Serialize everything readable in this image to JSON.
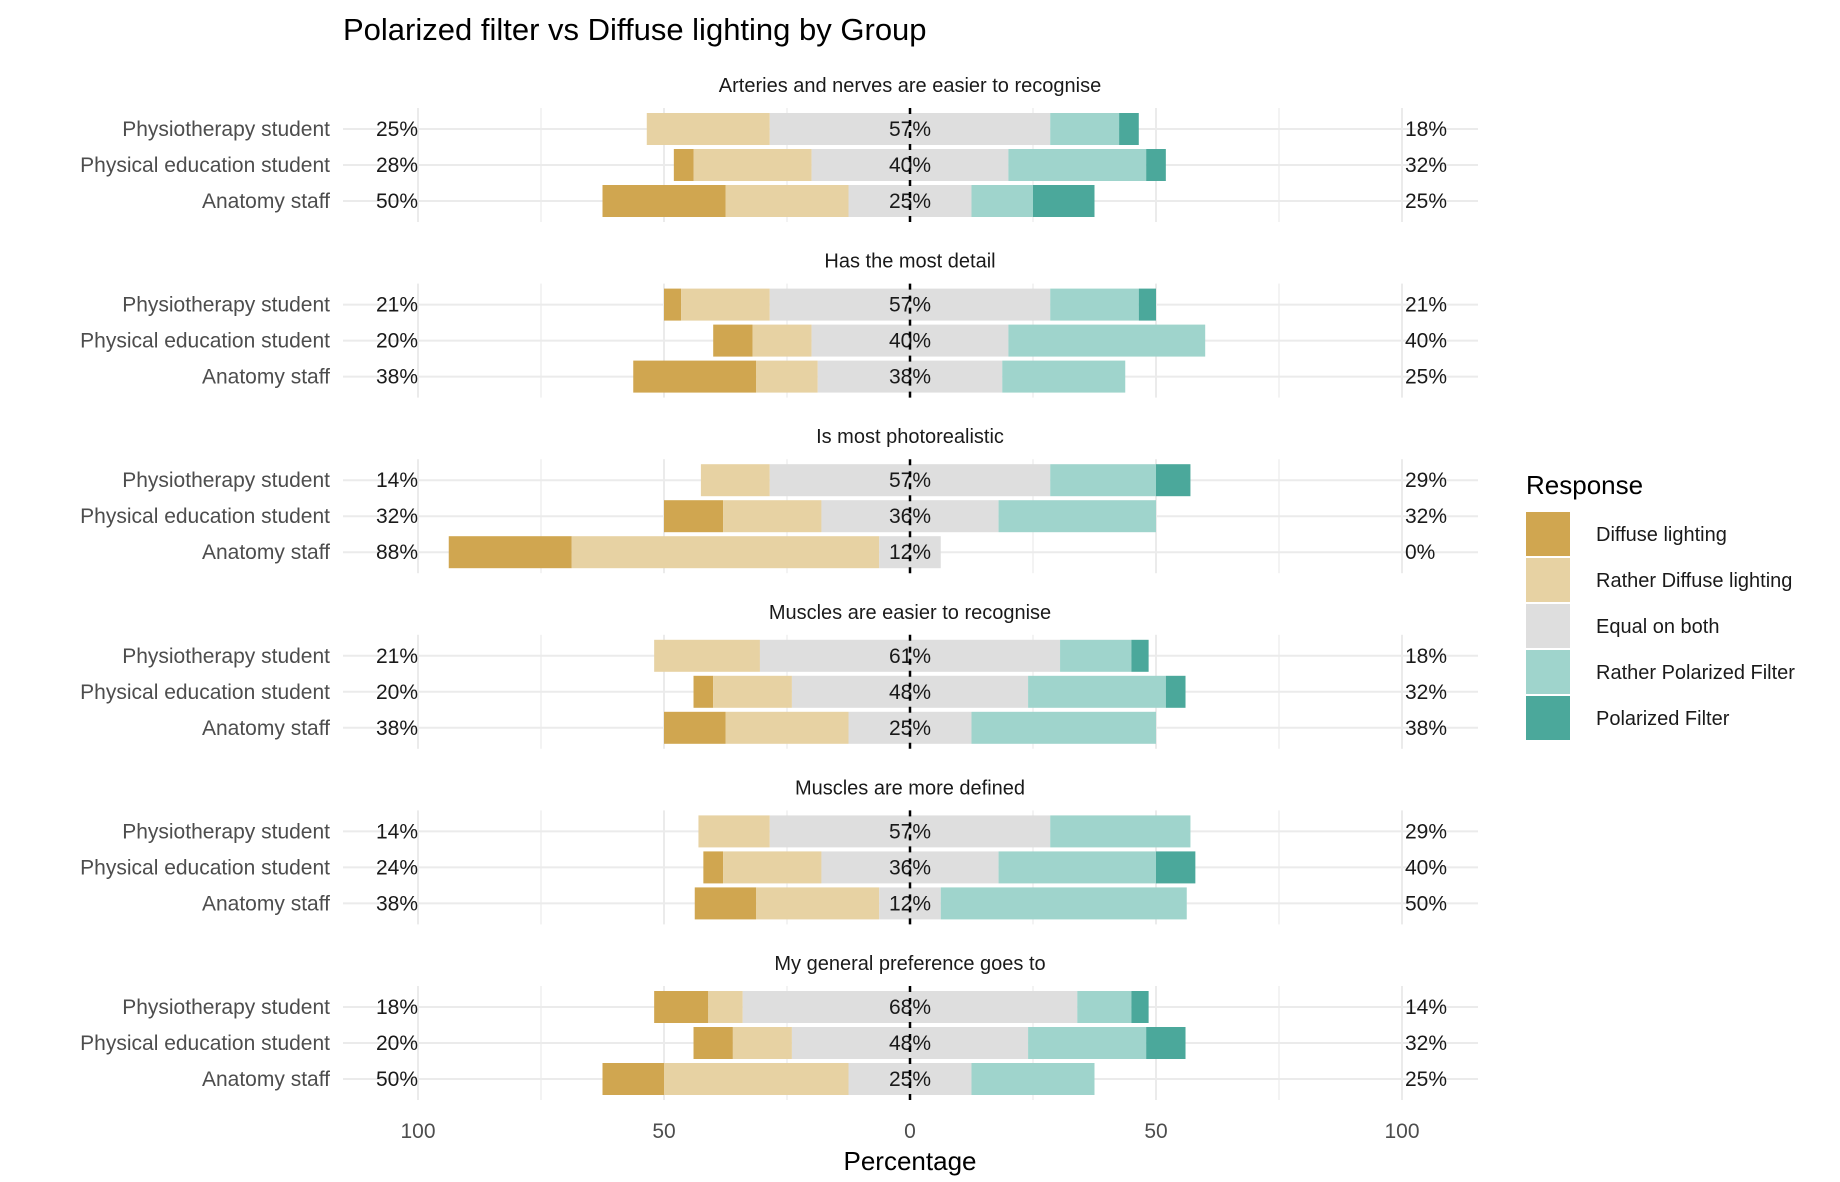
{
  "chart_data": {
    "type": "bar",
    "subtype": "diverging-stacked-likert",
    "title": "Polarized filter vs Diffuse lighting by Group",
    "xlabel": "Percentage",
    "ylabel": "",
    "xlim": [
      -100,
      100
    ],
    "x_ticks": [
      {
        "value": -100,
        "label": "100"
      },
      {
        "value": -50,
        "label": "50"
      },
      {
        "value": 0,
        "label": "0"
      },
      {
        "value": 50,
        "label": "50"
      },
      {
        "value": 100,
        "label": "100"
      }
    ],
    "grid": true,
    "legend": {
      "title": "Response",
      "position": "right",
      "items": [
        {
          "label": "Diffuse lighting",
          "color": "#D0A650"
        },
        {
          "label": "Rather Diffuse lighting",
          "color": "#E7D2A3"
        },
        {
          "label": "Equal on both",
          "color": "#DEDEDE"
        },
        {
          "label": "Rather Polarized Filter",
          "color": "#9FD4CC"
        },
        {
          "label": "Polarized Filter",
          "color": "#4BA89B"
        }
      ]
    },
    "groups": [
      "Physiotherapy student",
      "Physical education student",
      "Anatomy staff"
    ],
    "panels": [
      {
        "title": "Arteries and nerves are easier to recognise",
        "rows": [
          {
            "group": "Physiotherapy student",
            "values": [
              0,
              25,
              57,
              14,
              4
            ],
            "left_label": "25%",
            "center_label": "57%",
            "right_label": "18%"
          },
          {
            "group": "Physical education student",
            "values": [
              4,
              24,
              40,
              28,
              4
            ],
            "left_label": "28%",
            "center_label": "40%",
            "right_label": "32%"
          },
          {
            "group": "Anatomy staff",
            "values": [
              25,
              25,
              25,
              12.5,
              12.5
            ],
            "left_label": "50%",
            "center_label": "25%",
            "right_label": "25%"
          }
        ]
      },
      {
        "title": "Has the most detail",
        "rows": [
          {
            "group": "Physiotherapy student",
            "values": [
              3.5,
              18,
              57,
              18,
              3.5
            ],
            "left_label": "21%",
            "center_label": "57%",
            "right_label": "21%"
          },
          {
            "group": "Physical education student",
            "values": [
              8,
              12,
              40,
              40,
              0
            ],
            "left_label": "20%",
            "center_label": "40%",
            "right_label": "40%"
          },
          {
            "group": "Anatomy staff",
            "values": [
              25,
              12.5,
              37.5,
              25,
              0
            ],
            "left_label": "38%",
            "center_label": "38%",
            "right_label": "25%"
          }
        ]
      },
      {
        "title": "Is most photorealistic",
        "rows": [
          {
            "group": "Physiotherapy student",
            "values": [
              0,
              14,
              57,
              21.5,
              7
            ],
            "left_label": "14%",
            "center_label": "57%",
            "right_label": "29%"
          },
          {
            "group": "Physical education student",
            "values": [
              12,
              20,
              36,
              32,
              0
            ],
            "left_label": "32%",
            "center_label": "36%",
            "right_label": "32%"
          },
          {
            "group": "Anatomy staff",
            "values": [
              25,
              62.5,
              12.5,
              0,
              0
            ],
            "left_label": "88%",
            "center_label": "12%",
            "right_label": "0%"
          }
        ]
      },
      {
        "title": "Muscles are easier to recognise",
        "rows": [
          {
            "group": "Physiotherapy student",
            "values": [
              0,
              21.5,
              61,
              14.5,
              3.5
            ],
            "left_label": "21%",
            "center_label": "61%",
            "right_label": "18%"
          },
          {
            "group": "Physical education student",
            "values": [
              4,
              16,
              48,
              28,
              4
            ],
            "left_label": "20%",
            "center_label": "48%",
            "right_label": "32%"
          },
          {
            "group": "Anatomy staff",
            "values": [
              12.5,
              25,
              25,
              37.5,
              0
            ],
            "left_label": "38%",
            "center_label": "25%",
            "right_label": "38%"
          }
        ]
      },
      {
        "title": "Muscles are more defined",
        "rows": [
          {
            "group": "Physiotherapy student",
            "values": [
              0,
              14.5,
              57,
              28.5,
              0
            ],
            "left_label": "14%",
            "center_label": "57%",
            "right_label": "29%"
          },
          {
            "group": "Physical education student",
            "values": [
              4,
              20,
              36,
              32,
              8
            ],
            "left_label": "24%",
            "center_label": "36%",
            "right_label": "40%"
          },
          {
            "group": "Anatomy staff",
            "values": [
              12.5,
              25,
              12.5,
              50,
              0
            ],
            "left_label": "38%",
            "center_label": "12%",
            "right_label": "50%"
          }
        ]
      },
      {
        "title": "My general preference goes to",
        "rows": [
          {
            "group": "Physiotherapy student",
            "values": [
              11,
              7,
              68,
              11,
              3.5
            ],
            "left_label": "18%",
            "center_label": "68%",
            "right_label": "14%"
          },
          {
            "group": "Physical education student",
            "values": [
              8,
              12,
              48,
              24,
              8
            ],
            "left_label": "20%",
            "center_label": "48%",
            "right_label": "32%"
          },
          {
            "group": "Anatomy staff",
            "values": [
              12.5,
              37.5,
              25,
              25,
              0
            ],
            "left_label": "50%",
            "center_label": "25%",
            "right_label": "25%"
          }
        ]
      }
    ]
  }
}
